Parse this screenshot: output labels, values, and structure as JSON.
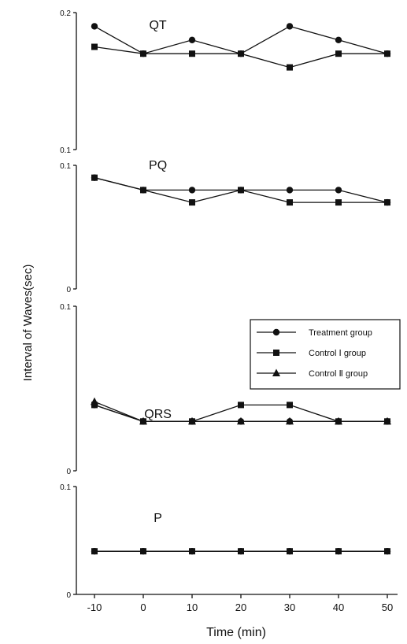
{
  "chart_data": {
    "type": "line",
    "ylabel": "Interval of Waves(sec)",
    "xlabel": "Time (min)",
    "x": [
      -10,
      0,
      10,
      20,
      30,
      40,
      50
    ],
    "x_tick_labels": [
      "-10",
      "0",
      "10",
      "20",
      "30",
      "40",
      "50"
    ],
    "legend": {
      "placement": "right, in QRS panel",
      "entries": [
        {
          "label": "Treatment group",
          "marker": "circle"
        },
        {
          "label": "Control Ⅰ group",
          "marker": "square"
        },
        {
          "label": "Control Ⅱ group",
          "marker": "triangle"
        }
      ]
    },
    "panels": [
      {
        "name": "QT",
        "ylim": [
          0.1,
          0.2
        ],
        "y_tick_labels": [
          "0.2",
          "0.1"
        ],
        "series": [
          {
            "name": "Treatment group",
            "marker": "circle",
            "values": [
              0.19,
              0.17,
              0.18,
              0.17,
              0.19,
              0.18,
              0.17
            ]
          },
          {
            "name": "Control Ⅰ group",
            "marker": "square",
            "values": [
              0.175,
              0.17,
              0.17,
              0.17,
              0.16,
              0.17,
              0.17
            ]
          }
        ]
      },
      {
        "name": "PQ",
        "ylim": [
          0,
          0.1
        ],
        "y_tick_labels": [
          "0.1",
          "0"
        ],
        "series": [
          {
            "name": "Treatment group",
            "marker": "circle",
            "values": [
              0.09,
              0.08,
              0.08,
              0.08,
              0.08,
              0.08,
              0.07
            ]
          },
          {
            "name": "Control Ⅰ group",
            "marker": "square",
            "values": [
              0.09,
              0.08,
              0.07,
              0.08,
              0.07,
              0.07,
              0.07
            ]
          }
        ]
      },
      {
        "name": "QRS",
        "ylim": [
          0,
          0.1
        ],
        "y_tick_labels": [
          "0.1",
          "0"
        ],
        "series": [
          {
            "name": "Treatment group",
            "marker": "circle",
            "values": [
              0.04,
              0.03,
              0.03,
              0.03,
              0.03,
              0.03,
              0.03
            ]
          },
          {
            "name": "Control Ⅰ group",
            "marker": "square",
            "values": [
              0.04,
              0.03,
              0.03,
              0.04,
              0.04,
              0.03,
              0.03
            ]
          },
          {
            "name": "Control Ⅱ group",
            "marker": "triangle",
            "values": [
              0.042,
              0.03,
              0.03,
              0.03,
              0.03,
              0.03,
              0.03
            ]
          }
        ]
      },
      {
        "name": "P",
        "ylim": [
          0,
          0.1
        ],
        "y_tick_labels": [
          "0.1",
          "0"
        ],
        "series": [
          {
            "name": "Treatment group",
            "marker": "circle",
            "values": [
              0.04,
              0.04,
              0.04,
              0.04,
              0.04,
              0.04,
              0.04
            ]
          },
          {
            "name": "Control Ⅰ group",
            "marker": "square",
            "values": [
              0.04,
              0.04,
              0.04,
              0.04,
              0.04,
              0.04,
              0.04
            ]
          }
        ]
      }
    ]
  }
}
